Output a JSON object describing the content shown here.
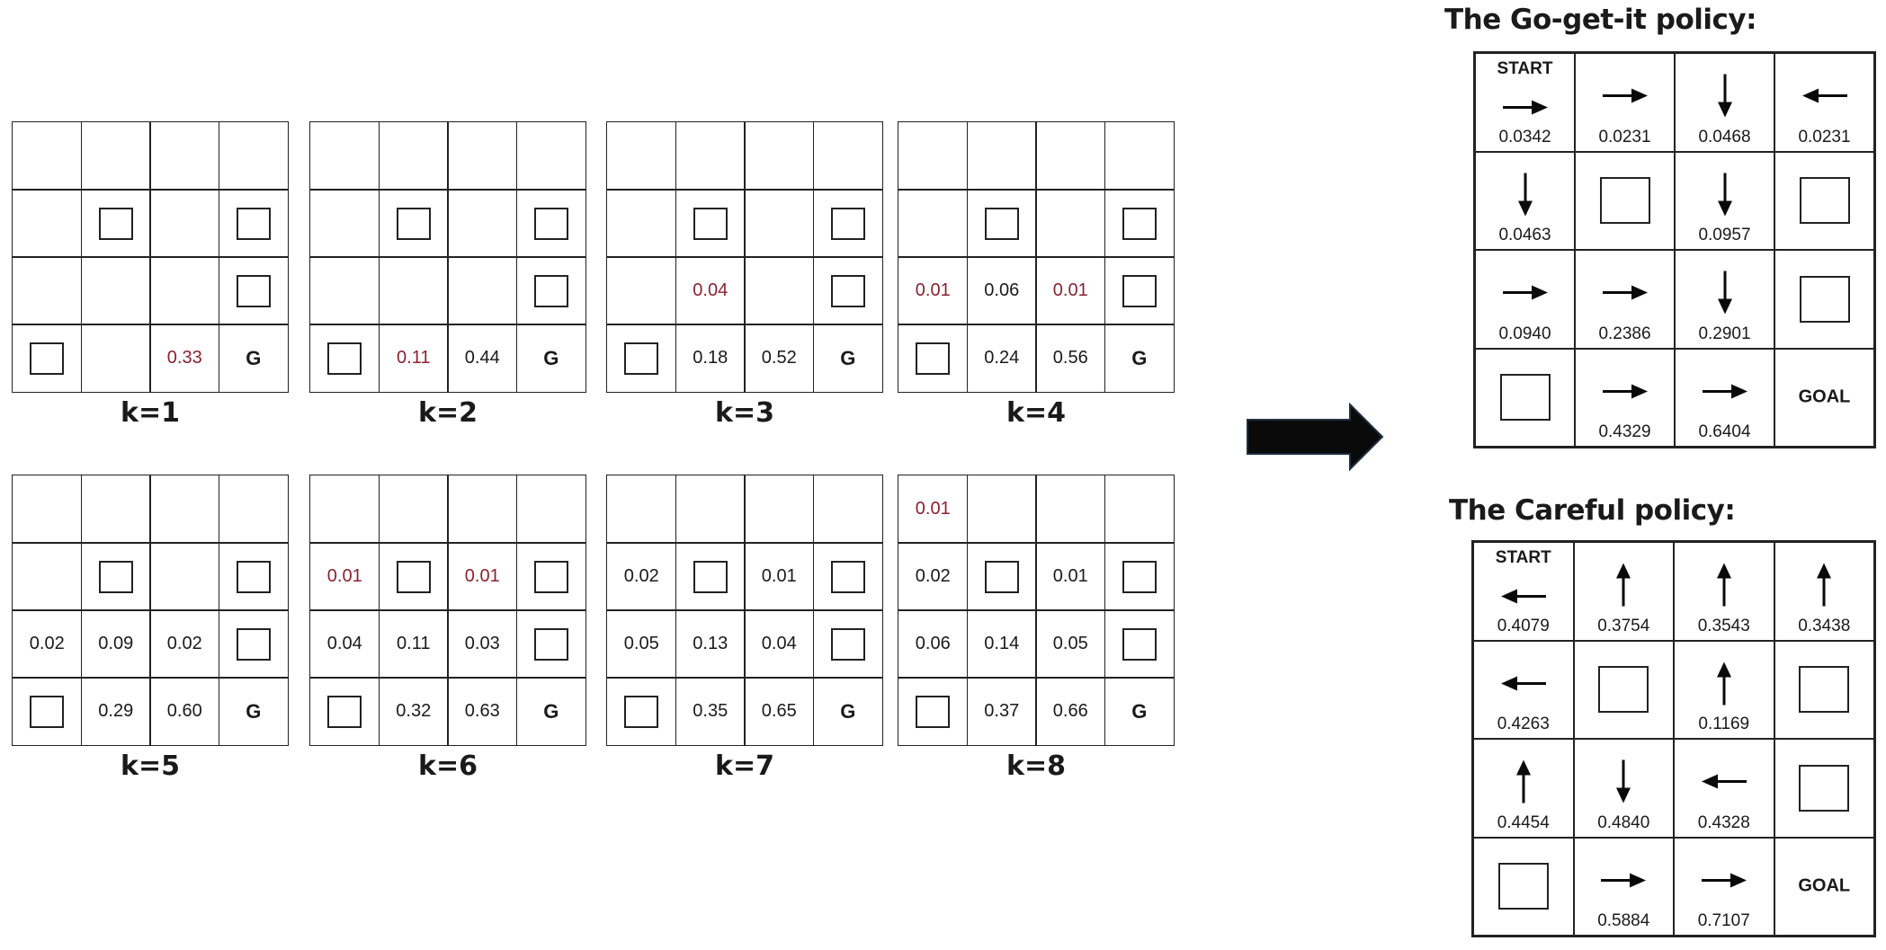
{
  "value_iteration": [
    {
      "label": "k=1",
      "cells": [
        [
          "",
          "",
          "",
          ""
        ],
        [
          "",
          "#",
          "",
          "#"
        ],
        [
          "",
          "",
          "",
          "#"
        ],
        [
          "#",
          "",
          "r:0.33",
          "G"
        ]
      ]
    },
    {
      "label": "k=2",
      "cells": [
        [
          "",
          "",
          "",
          ""
        ],
        [
          "",
          "#",
          "",
          "#"
        ],
        [
          "",
          "",
          "",
          "#"
        ],
        [
          "#",
          "r:0.11",
          "0.44",
          "G"
        ]
      ]
    },
    {
      "label": "k=3",
      "cells": [
        [
          "",
          "",
          "",
          ""
        ],
        [
          "",
          "#",
          "",
          "#"
        ],
        [
          "",
          "r:0.04",
          "",
          "#"
        ],
        [
          "#",
          "0.18",
          "0.52",
          "G"
        ]
      ]
    },
    {
      "label": "k=4",
      "cells": [
        [
          "",
          "",
          "",
          ""
        ],
        [
          "",
          "#",
          "",
          "#"
        ],
        [
          "r:0.01",
          "0.06",
          "r:0.01",
          "#"
        ],
        [
          "#",
          "0.24",
          "0.56",
          "G"
        ]
      ]
    },
    {
      "label": "k=5",
      "cells": [
        [
          "",
          "",
          "",
          ""
        ],
        [
          "",
          "#",
          "",
          "#"
        ],
        [
          "0.02",
          "0.09",
          "0.02",
          "#"
        ],
        [
          "#",
          "0.29",
          "0.60",
          "G"
        ]
      ]
    },
    {
      "label": "k=6",
      "cells": [
        [
          "",
          "",
          "",
          ""
        ],
        [
          "r:0.01",
          "#",
          "r:0.01",
          "#"
        ],
        [
          "0.04",
          "0.11",
          "0.03",
          "#"
        ],
        [
          "#",
          "0.32",
          "0.63",
          "G"
        ]
      ]
    },
    {
      "label": "k=7",
      "cells": [
        [
          "",
          "",
          "",
          ""
        ],
        [
          "0.02",
          "#",
          "0.01",
          "#"
        ],
        [
          "0.05",
          "0.13",
          "0.04",
          "#"
        ],
        [
          "#",
          "0.35",
          "0.65",
          "G"
        ]
      ]
    },
    {
      "label": "k=8",
      "cells": [
        [
          "r:0.01",
          "",
          "",
          ""
        ],
        [
          "0.02",
          "#",
          "0.01",
          "#"
        ],
        [
          "0.06",
          "0.14",
          "0.05",
          "#"
        ],
        [
          "#",
          "0.37",
          "0.66",
          "G"
        ]
      ]
    }
  ],
  "policies": [
    {
      "title": "The Go-get-it policy:",
      "cells": [
        [
          {
            "start": "START",
            "dir": "right",
            "val": "0.0342"
          },
          {
            "dir": "right",
            "val": "0.0231"
          },
          {
            "dir": "down",
            "val": "0.0468"
          },
          {
            "dir": "left",
            "val": "0.0231"
          }
        ],
        [
          {
            "dir": "down",
            "val": "0.0463"
          },
          {
            "wall": true
          },
          {
            "dir": "down",
            "val": "0.0957"
          },
          {
            "wall": true
          }
        ],
        [
          {
            "dir": "right",
            "val": "0.0940"
          },
          {
            "dir": "right",
            "val": "0.2386"
          },
          {
            "dir": "down",
            "val": "0.2901"
          },
          {
            "wall": true
          }
        ],
        [
          {
            "wall": true
          },
          {
            "dir": "right",
            "val": "0.4329"
          },
          {
            "dir": "right",
            "val": "0.6404"
          },
          {
            "goal": "GOAL"
          }
        ]
      ]
    },
    {
      "title": "The Careful policy:",
      "cells": [
        [
          {
            "start": "START",
            "dir": "left",
            "val": "0.4079"
          },
          {
            "dir": "up",
            "val": "0.3754"
          },
          {
            "dir": "up",
            "val": "0.3543"
          },
          {
            "dir": "up",
            "val": "0.3438"
          }
        ],
        [
          {
            "dir": "left",
            "val": "0.4263"
          },
          {
            "wall": true
          },
          {
            "dir": "up",
            "val": "0.1169"
          },
          {
            "wall": true
          }
        ],
        [
          {
            "dir": "up",
            "val": "0.4454"
          },
          {
            "dir": "down",
            "val": "0.4840"
          },
          {
            "dir": "left",
            "val": "0.4328"
          },
          {
            "wall": true
          }
        ],
        [
          {
            "wall": true
          },
          {
            "dir": "right",
            "val": "0.5884"
          },
          {
            "dir": "right",
            "val": "0.7107"
          },
          {
            "goal": "GOAL"
          }
        ]
      ]
    }
  ],
  "colors": {
    "highlight": "#8b2230",
    "line": "#222222",
    "arrow": "#0a0a0a",
    "arrow_outline": "#1f3040"
  }
}
